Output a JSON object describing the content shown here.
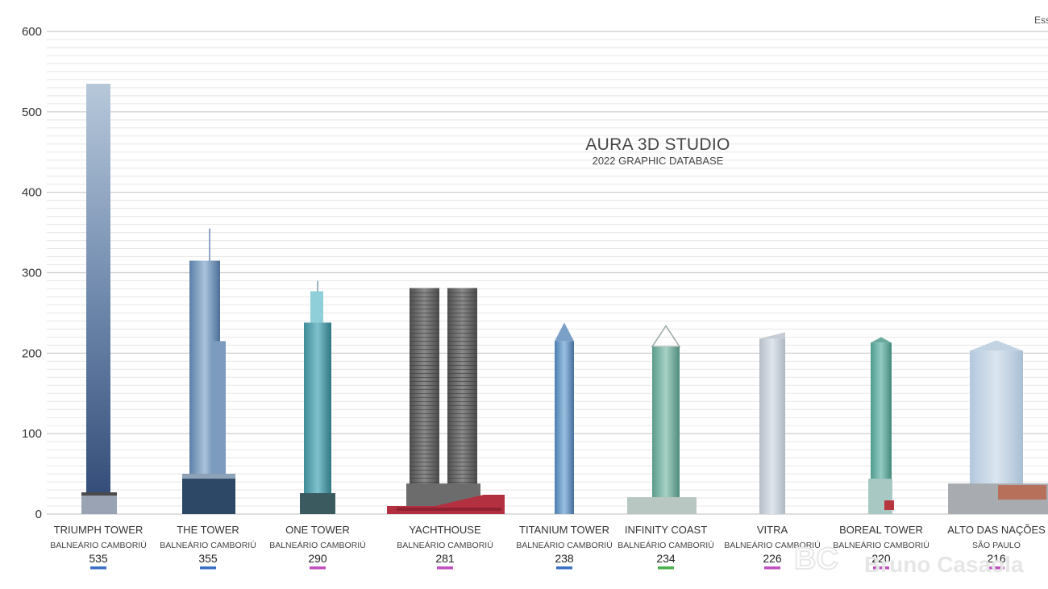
{
  "chart_data": {
    "type": "bar",
    "title": "AURA 3D STUDIO",
    "subtitle": "2022 GRAPHIC DATABASE",
    "ylim": [
      0,
      600
    ],
    "yticks": [
      0,
      100,
      200,
      300,
      400,
      500,
      600
    ],
    "grid": true,
    "categories": [
      "TRIUMPH TOWER",
      "THE TOWER",
      "ONE TOWER",
      "YACHTHOUSE",
      "TITANIUM TOWER",
      "INFINITY COAST",
      "VITRA",
      "BOREAL TOWER",
      "ALTO DAS NAÇÕES"
    ],
    "cities": [
      "BALNEÁRIO CAMBORIÚ",
      "BALNEÁRIO CAMBORIÚ",
      "BALNEÁRIO CAMBORIÚ",
      "BALNEÁRIO CAMBORIÚ",
      "BALNEÁRIO CAMBORIÚ",
      "BALNEÁRIO CAMBORIÚ",
      "BALNEÁRIO CAMBORIÚ",
      "BALNEÁRIO CAMBORIÚ",
      "SÃO PAULO"
    ],
    "values": [
      535,
      355,
      290,
      281,
      238,
      234,
      226,
      220,
      216
    ],
    "status_colors": [
      "#3b6fc4",
      "#3b6fc4",
      "#c04fc0",
      "#c04fc0",
      "#3b6fc4",
      "#48b04a",
      "#c04fc0",
      "#c04fc0",
      "#c04fc0"
    ]
  },
  "corner_text": "Ess",
  "watermark": {
    "logo": "BC",
    "text": "Bruno Casaola"
  },
  "colors": {
    "grid": "#d0d0d0",
    "axis": "#bbbbbb"
  }
}
